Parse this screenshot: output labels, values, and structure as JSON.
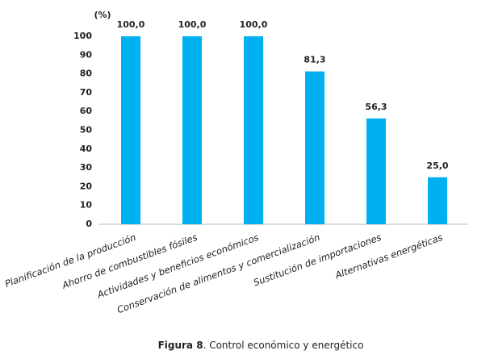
{
  "chart_data": {
    "type": "bar",
    "y_label": "(%)",
    "categories": [
      "Planificación de la producción",
      "Ahorro de combustibles fósiles",
      "Actividades y beneficios económicos",
      "Conservación de alimentos y comercialización",
      "Sustitución de importaciones",
      "Alternativas energéticas"
    ],
    "values": [
      100,
      100,
      100,
      81.3,
      56.3,
      25
    ],
    "value_labels": [
      "100,0",
      "100,0",
      "100,0",
      "81,3",
      "56,3",
      "25,0"
    ],
    "color": "#00b0f0",
    "ylim": [
      0,
      100
    ],
    "yticks": [
      0,
      10,
      20,
      30,
      40,
      50,
      60,
      70,
      80,
      90,
      100
    ],
    "grid": false,
    "caption_label": "Figura 8",
    "caption_text": ". Control económico y energético"
  }
}
